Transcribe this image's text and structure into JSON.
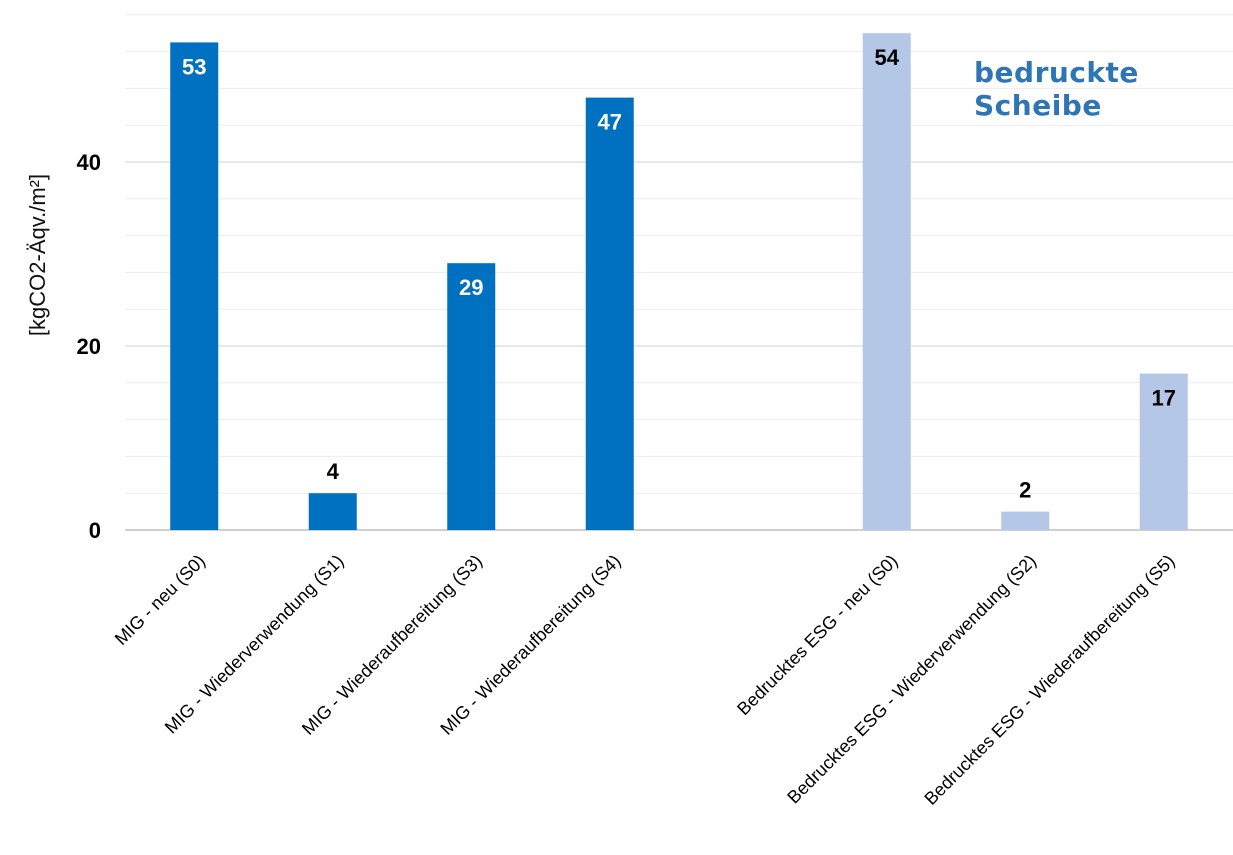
{
  "chart_data": {
    "type": "bar",
    "title": "",
    "xlabel": "",
    "ylabel": "[kgCO2-Äqv./m²]",
    "annotation": "bedruckte Scheibe",
    "ylim": [
      0,
      56
    ],
    "yticks": [
      0,
      20,
      40
    ],
    "grid": true,
    "categories": [
      "MIG - neu (S0)",
      "MIG - Wiederverwendung (S1)",
      "MIG - Wiederaufbereitung (S3)",
      "MIG - Wiederaufbereitung (S4)",
      "",
      "Bedrucktes ESG - neu (S0)",
      "Bedrucktes ESG - Wiederverwendung (S2)",
      "Bedrucktes ESG - Wiederaufbereitung (S5)"
    ],
    "values": [
      53,
      4,
      29,
      47,
      null,
      54,
      2,
      17
    ],
    "value_labels": [
      "53",
      "4",
      "29",
      "47",
      "",
      "54",
      "2",
      "17"
    ],
    "bar_colors": [
      "#0070C0",
      "#0070C0",
      "#0070C0",
      "#0070C0",
      "",
      "#B4C7E7",
      "#B4C7E7",
      "#B4C7E7"
    ],
    "label_colors": [
      "#FFFFFF",
      "#000000",
      "#FFFFFF",
      "#FFFFFF",
      "",
      "#000000",
      "#000000",
      "#000000"
    ],
    "label_inside": [
      true,
      false,
      true,
      true,
      false,
      true,
      false,
      true
    ]
  }
}
